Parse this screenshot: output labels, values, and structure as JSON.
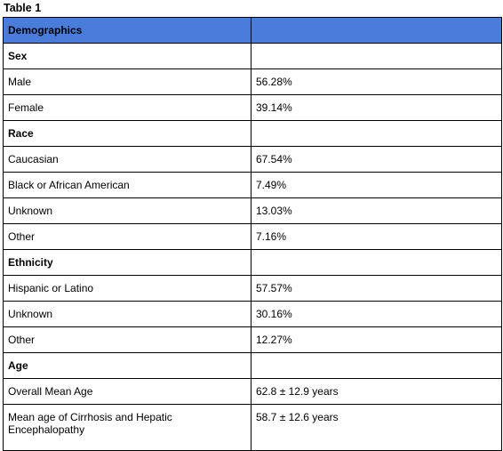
{
  "caption": "Table 1",
  "table": {
    "header": [
      "Demographics",
      ""
    ],
    "rows": [
      {
        "label": "Sex",
        "value": "",
        "section": true
      },
      {
        "label": "Male",
        "value": "56.28%"
      },
      {
        "label": "Female",
        "value": "39.14%"
      },
      {
        "label": "Race",
        "value": "",
        "section": true
      },
      {
        "label": "Caucasian",
        "value": "67.54%"
      },
      {
        "label": "Black or African American",
        "value": "7.49%"
      },
      {
        "label": "Unknown",
        "value": "13.03%"
      },
      {
        "label": "Other",
        "value": "7.16%"
      },
      {
        "label": "Ethnicity",
        "value": "",
        "section": true
      },
      {
        "label": "Hispanic or Latino",
        "value": "57.57%"
      },
      {
        "label": "Unknown",
        "value": "30.16%"
      },
      {
        "label": "Other",
        "value": "12.27%"
      },
      {
        "label": "Age",
        "value": "",
        "section": true
      },
      {
        "label": "Overall Mean Age",
        "value": "62.8 ± 12.9 years"
      },
      {
        "label": "Mean age of Cirrhosis and Hepatic Encephalopathy",
        "value": "58.7 ± 12.6 years",
        "tall": true
      }
    ]
  }
}
